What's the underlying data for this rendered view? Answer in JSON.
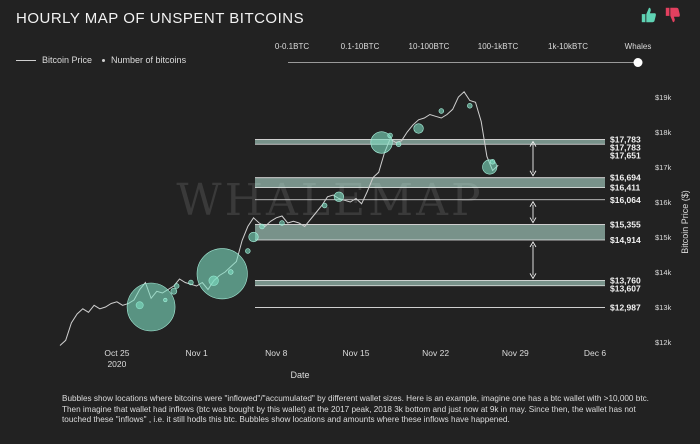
{
  "header": {
    "title": "HOURLY MAP OF UNSPENT BITCOINS"
  },
  "icons": {
    "like": "thumbs-up-icon",
    "dislike": "thumbs-down-icon",
    "like_color": "#5fd3b4",
    "dislike_color": "#e3405f"
  },
  "legend": {
    "price_label": "Bitcoin Price",
    "bitcoins_label": "Number of bitcoins"
  },
  "wallet_filter": {
    "options": [
      "0-0.1BTC",
      "0.1-10BTC",
      "10-100BTC",
      "100-1kBTC",
      "1k-10kBTC",
      "Whales"
    ],
    "selected": "Whales"
  },
  "watermark": "WHALEMAP",
  "footnote": "Bubbles show locations where bitcoins were \"inflowed\"/\"accumulated\" by different wallet sizes. Here is an example, imagine one has a btc wallet with >10,000 btc. Then imagine that wallet had inflows (btc was bought by this wallet) at the 2017 peak, 2018 3k bottom and just now at 9k in may. Since then, the wallet has not touched these \"inflows\" , i.e. it still hodls this btc. Bubbles show locations and amounts where these inflows have happened.",
  "colors": {
    "background": "#222222",
    "bubble": "#7fe0c3",
    "price_line": "#cfcfcf",
    "band": "#bfeee0"
  },
  "chart_data": {
    "type": "scatter",
    "xlabel": "Date",
    "ylabel": "Bitcoin Price ($)",
    "x_ticks": [
      {
        "date": "2020-10-25",
        "label": "Oct 25",
        "sub": "2020"
      },
      {
        "date": "2020-11-01",
        "label": "Nov 1",
        "sub": ""
      },
      {
        "date": "2020-11-08",
        "label": "Nov 8",
        "sub": ""
      },
      {
        "date": "2020-11-15",
        "label": "Nov 15",
        "sub": ""
      },
      {
        "date": "2020-11-22",
        "label": "Nov 22",
        "sub": ""
      },
      {
        "date": "2020-11-29",
        "label": "Nov 29",
        "sub": ""
      },
      {
        "date": "2020-12-06",
        "label": "Dec 6",
        "sub": ""
      }
    ],
    "xlim": [
      "2020-10-20",
      "2020-12-06"
    ],
    "y_ticks": [
      {
        "value": 12000,
        "label": "$12k"
      },
      {
        "value": 13000,
        "label": "$13k"
      },
      {
        "value": 14000,
        "label": "$14k"
      },
      {
        "value": 15000,
        "label": "$15k"
      },
      {
        "value": 16000,
        "label": "$16k"
      },
      {
        "value": 17000,
        "label": "$17k"
      },
      {
        "value": 18000,
        "label": "$18k"
      },
      {
        "value": 19000,
        "label": "$19k"
      }
    ],
    "ylim": [
      12000,
      19200
    ],
    "price_series": {
      "name": "Bitcoin Price",
      "x": [
        "2020-10-20 00:00",
        "2020-10-20 12:00",
        "2020-10-21 00:00",
        "2020-10-21 12:00",
        "2020-10-22 00:00",
        "2020-10-22 12:00",
        "2020-10-23 00:00",
        "2020-10-23 12:00",
        "2020-10-24 00:00",
        "2020-10-24 12:00",
        "2020-10-25 00:00",
        "2020-10-25 12:00",
        "2020-10-26 00:00",
        "2020-10-26 12:00",
        "2020-10-27 00:00",
        "2020-10-27 12:00",
        "2020-10-28 00:00",
        "2020-10-28 12:00",
        "2020-10-29 00:00",
        "2020-10-29 12:00",
        "2020-10-30 00:00",
        "2020-10-30 12:00",
        "2020-10-31 00:00",
        "2020-10-31 12:00",
        "2020-11-01 00:00",
        "2020-11-01 12:00",
        "2020-11-02 00:00",
        "2020-11-02 12:00",
        "2020-11-03 00:00",
        "2020-11-03 12:00",
        "2020-11-04 00:00",
        "2020-11-04 12:00",
        "2020-11-05 00:00",
        "2020-11-05 12:00",
        "2020-11-06 00:00",
        "2020-11-06 12:00",
        "2020-11-07 00:00",
        "2020-11-07 12:00",
        "2020-11-08 00:00",
        "2020-11-08 12:00",
        "2020-11-09 00:00",
        "2020-11-09 12:00",
        "2020-11-10 00:00",
        "2020-11-10 12:00",
        "2020-11-11 00:00",
        "2020-11-11 12:00",
        "2020-11-12 00:00",
        "2020-11-12 12:00",
        "2020-11-13 00:00",
        "2020-11-13 12:00",
        "2020-11-14 00:00",
        "2020-11-14 12:00",
        "2020-11-15 00:00",
        "2020-11-15 12:00",
        "2020-11-16 00:00",
        "2020-11-16 12:00",
        "2020-11-17 00:00",
        "2020-11-17 12:00",
        "2020-11-18 00:00",
        "2020-11-18 12:00",
        "2020-11-19 00:00",
        "2020-11-19 12:00",
        "2020-11-20 00:00",
        "2020-11-20 12:00",
        "2020-11-21 00:00",
        "2020-11-21 12:00",
        "2020-11-22 00:00",
        "2020-11-22 12:00",
        "2020-11-23 00:00",
        "2020-11-23 12:00",
        "2020-11-24 00:00",
        "2020-11-24 12:00",
        "2020-11-25 00:00",
        "2020-11-25 12:00",
        "2020-11-26 00:00",
        "2020-11-26 12:00",
        "2020-11-27 00:00",
        "2020-11-27 12:00"
      ],
      "y": [
        11900,
        12050,
        12550,
        12800,
        12950,
        12850,
        13050,
        12950,
        13000,
        13100,
        13150,
        13050,
        13100,
        13200,
        13500,
        13700,
        13250,
        13450,
        13400,
        13500,
        13600,
        13800,
        13700,
        13650,
        13600,
        13700,
        13500,
        13750,
        13900,
        14000,
        14150,
        14300,
        14900,
        15300,
        15550,
        15400,
        15300,
        15450,
        15550,
        15600,
        15400,
        15450,
        15400,
        15300,
        15500,
        15700,
        15900,
        16150,
        16200,
        16100,
        16050,
        16000,
        16100,
        15950,
        16300,
        16700,
        16850,
        17400,
        17800,
        17700,
        17750,
        18000,
        18200,
        18350,
        18400,
        18500,
        18450,
        18400,
        18500,
        18650,
        19000,
        19150,
        18900,
        18850,
        18300,
        17300,
        16900,
        17050
      ]
    },
    "bubbles": {
      "name": "Number of bitcoins",
      "x": [
        "2020-10-27 00:00",
        "2020-10-28 00:00",
        "2020-10-29 06:00",
        "2020-10-30 00:00",
        "2020-10-30 06:00",
        "2020-10-31 12:00",
        "2020-11-02 12:00",
        "2020-11-03 06:00",
        "2020-11-04 00:00",
        "2020-11-05 12:00",
        "2020-11-06 00:00",
        "2020-11-06 18:00",
        "2020-11-08 12:00",
        "2020-11-12 06:00",
        "2020-11-13 12:00",
        "2020-11-17 06:00",
        "2020-11-18 00:00",
        "2020-11-18 18:00",
        "2020-11-20 12:00",
        "2020-11-22 12:00",
        "2020-11-25 00:00",
        "2020-11-26 18:00",
        "2020-11-27 00:00"
      ],
      "y": [
        13050,
        13000,
        13200,
        13450,
        13600,
        13700,
        13750,
        13950,
        14000,
        14600,
        15000,
        15300,
        15400,
        15900,
        16150,
        17700,
        17900,
        17650,
        18100,
        18600,
        18750,
        17000,
        17150
      ],
      "size": [
        6,
        40,
        3,
        5,
        4,
        4,
        8,
        42,
        4,
        4,
        8,
        4,
        4,
        4,
        8,
        18,
        4,
        4,
        8,
        4,
        4,
        12,
        4
      ]
    },
    "levels": [
      {
        "value": 17783,
        "label": "$17,783"
      },
      {
        "value": 17783,
        "label": "$17,783"
      },
      {
        "value": 17651,
        "label": "$17,651"
      },
      {
        "value": 16694,
        "label": "$16,694"
      },
      {
        "value": 16411,
        "label": "$16,411"
      },
      {
        "value": 16064,
        "label": "$16,064"
      },
      {
        "value": 15355,
        "label": "$15,355"
      },
      {
        "value": 14914,
        "label": "$14,914"
      },
      {
        "value": 13760,
        "label": "$13,760"
      },
      {
        "value": 13607,
        "label": "$13,607"
      },
      {
        "value": 12987,
        "label": "$12,987"
      }
    ],
    "bands": [
      [
        17651,
        17783
      ],
      [
        16411,
        16694
      ],
      [
        14914,
        15355
      ],
      [
        13607,
        13760
      ]
    ],
    "arrows": [
      [
        17783,
        16694
      ],
      [
        16064,
        15355
      ],
      [
        14914,
        13760
      ]
    ]
  }
}
